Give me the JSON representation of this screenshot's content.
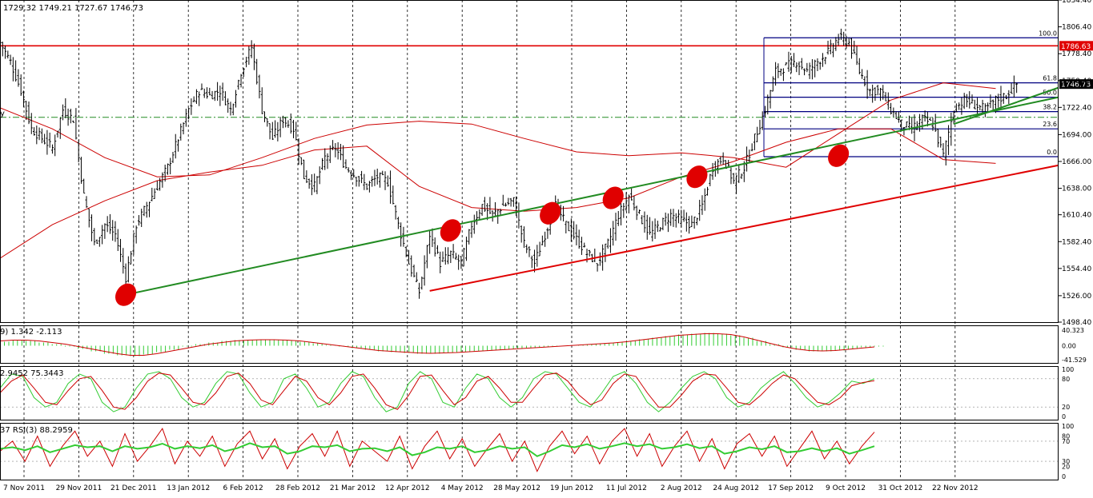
{
  "header": {
    "ohlc_text": "1729.32 1749.21 1727.67 1746.73",
    "macd_text": "9) 1.342 -2.113",
    "stoch_text": "2.9452 75.3443",
    "rsi_text": "37  RSI(3) 88.2959",
    "partial_left_label": "y"
  },
  "colors": {
    "background": "#ffffff",
    "price_bars": "#000000",
    "grid": "#000000",
    "ma_line": "#cc0000",
    "support_green": "#228b22",
    "support_red": "#e00000",
    "resistance_red": "#e00000",
    "fib_lines": "#000080",
    "fib_dashdot": "#228b22",
    "marker_fill": "#e00000",
    "macd_hist": "#33cc33",
    "macd_signal": "#cc0000",
    "stoch_main": "#33cc33",
    "stoch_signal": "#cc0000",
    "rsi_fast": "#cc0000",
    "rsi_slow": "#33cc33"
  },
  "chart_data": {
    "type": "candlestick",
    "title": "",
    "x_labels": [
      "7 Nov 2011",
      "29 Nov 2011",
      "21 Dec 2011",
      "13 Jan 2012",
      "6 Feb 2012",
      "28 Feb 2012",
      "21 Mar 2012",
      "12 Apr 2012",
      "4 May 2012",
      "28 May 2012",
      "19 Jun 2012",
      "11 Jul 2012",
      "2 Aug 2012",
      "24 Aug 2012",
      "17 Sep 2012",
      "9 Oct 2012",
      "31 Oct 2012",
      "22 Nov 2012"
    ],
    "price_ticks": [
      "1834.40",
      "1806.40",
      "1778.40",
      "1750.40",
      "1722.40",
      "1694.00",
      "1666.00",
      "1638.00",
      "1610.40",
      "1582.40",
      "1554.40",
      "1526.00",
      "1498.40"
    ],
    "ylim": [
      1498.4,
      1834.4
    ],
    "price_path": [
      [
        0,
        1790
      ],
      [
        2,
        1770
      ],
      [
        4,
        1740
      ],
      [
        6,
        1700
      ],
      [
        8,
        1690
      ],
      [
        10,
        1680
      ],
      [
        12,
        1720
      ],
      [
        14,
        1710
      ],
      [
        16,
        1630
      ],
      [
        18,
        1580
      ],
      [
        20,
        1600
      ],
      [
        22,
        1590
      ],
      [
        24,
        1545
      ],
      [
        26,
        1600
      ],
      [
        28,
        1620
      ],
      [
        30,
        1640
      ],
      [
        32,
        1660
      ],
      [
        34,
        1690
      ],
      [
        36,
        1720
      ],
      [
        38,
        1740
      ],
      [
        40,
        1735
      ],
      [
        42,
        1740
      ],
      [
        44,
        1720
      ],
      [
        46,
        1760
      ],
      [
        48,
        1785
      ],
      [
        50,
        1720
      ],
      [
        52,
        1690
      ],
      [
        54,
        1710
      ],
      [
        56,
        1700
      ],
      [
        58,
        1650
      ],
      [
        60,
        1640
      ],
      [
        62,
        1670
      ],
      [
        64,
        1680
      ],
      [
        66,
        1660
      ],
      [
        68,
        1650
      ],
      [
        70,
        1640
      ],
      [
        72,
        1650
      ],
      [
        74,
        1645
      ],
      [
        76,
        1600
      ],
      [
        78,
        1560
      ],
      [
        80,
        1530
      ],
      [
        82,
        1590
      ],
      [
        84,
        1560
      ],
      [
        86,
        1570
      ],
      [
        88,
        1560
      ],
      [
        90,
        1600
      ],
      [
        92,
        1620
      ],
      [
        94,
        1610
      ],
      [
        96,
        1620
      ],
      [
        98,
        1625
      ],
      [
        100,
        1580
      ],
      [
        102,
        1560
      ],
      [
        104,
        1590
      ],
      [
        106,
        1620
      ],
      [
        108,
        1600
      ],
      [
        110,
        1585
      ],
      [
        112,
        1570
      ],
      [
        114,
        1560
      ],
      [
        116,
        1580
      ],
      [
        118,
        1610
      ],
      [
        120,
        1630
      ],
      [
        122,
        1610
      ],
      [
        124,
        1590
      ],
      [
        126,
        1600
      ],
      [
        128,
        1610
      ],
      [
        130,
        1605
      ],
      [
        132,
        1600
      ],
      [
        134,
        1620
      ],
      [
        136,
        1660
      ],
      [
        138,
        1670
      ],
      [
        140,
        1645
      ],
      [
        142,
        1660
      ],
      [
        144,
        1690
      ],
      [
        146,
        1720
      ],
      [
        148,
        1760
      ],
      [
        150,
        1765
      ],
      [
        152,
        1770
      ],
      [
        154,
        1760
      ],
      [
        156,
        1770
      ],
      [
        158,
        1780
      ],
      [
        160,
        1795
      ],
      [
        162,
        1790
      ],
      [
        164,
        1760
      ],
      [
        166,
        1740
      ],
      [
        168,
        1740
      ],
      [
        170,
        1720
      ],
      [
        172,
        1705
      ],
      [
        174,
        1700
      ],
      [
        176,
        1710
      ],
      [
        178,
        1705
      ],
      [
        180,
        1672
      ],
      [
        182,
        1720
      ],
      [
        184,
        1730
      ],
      [
        186,
        1725
      ],
      [
        188,
        1720
      ],
      [
        190,
        1730
      ],
      [
        192,
        1735
      ],
      [
        194,
        1746.73
      ]
    ],
    "moving_averages": [
      {
        "name": "",
        "values": [
          [
            0,
            1722
          ],
          [
            10,
            1700
          ],
          [
            20,
            1670
          ],
          [
            30,
            1650
          ],
          [
            40,
            1652
          ],
          [
            50,
            1670
          ],
          [
            60,
            1690
          ],
          [
            70,
            1704
          ],
          [
            80,
            1708
          ],
          [
            90,
            1705
          ],
          [
            100,
            1690
          ],
          [
            110,
            1676
          ],
          [
            120,
            1672
          ],
          [
            130,
            1675
          ],
          [
            140,
            1670
          ],
          [
            150,
            1660
          ],
          [
            160,
            1695
          ],
          [
            170,
            1730
          ],
          [
            180,
            1748
          ],
          [
            190,
            1742
          ]
        ]
      },
      {
        "name": "",
        "values": [
          [
            0,
            1565
          ],
          [
            10,
            1600
          ],
          [
            20,
            1625
          ],
          [
            30,
            1646
          ],
          [
            40,
            1655
          ],
          [
            50,
            1662
          ],
          [
            60,
            1678
          ],
          [
            70,
            1682
          ],
          [
            80,
            1640
          ],
          [
            90,
            1618
          ],
          [
            100,
            1614
          ],
          [
            110,
            1618
          ],
          [
            120,
            1628
          ],
          [
            130,
            1650
          ],
          [
            140,
            1666
          ],
          [
            150,
            1686
          ],
          [
            160,
            1700
          ],
          [
            170,
            1700
          ],
          [
            180,
            1668
          ],
          [
            190,
            1664
          ]
        ]
      }
    ],
    "horizontal_levels": [
      {
        "label": "1786.63",
        "value": 1786.63
      },
      {
        "label": "1746.73",
        "value": 1746.73
      }
    ],
    "fibonacci": {
      "levels": [
        {
          "label": "100.0",
          "value": 1795
        },
        {
          "label": "61.8",
          "value": 1748
        },
        {
          "label": "50.0",
          "value": 1733
        },
        {
          "label": "38.2",
          "value": 1718
        },
        {
          "label": "23.6",
          "value": 1700
        },
        {
          "label": "0.0",
          "value": 1671
        }
      ]
    },
    "trendlines": [
      {
        "name": "support-green-main",
        "from": [
          24,
          1527
        ],
        "to": [
          202,
          1733
        ]
      },
      {
        "name": "support-green-upper",
        "from": [
          182,
          1705
        ],
        "to": [
          202,
          1743
        ]
      },
      {
        "name": "support-red",
        "from": [
          82,
          1531
        ],
        "to": [
          202,
          1662
        ]
      }
    ],
    "touch_markers": [
      [
        24,
        1527
      ],
      [
        86,
        1594
      ],
      [
        105,
        1612
      ],
      [
        117,
        1628
      ],
      [
        133,
        1650
      ],
      [
        160,
        1672
      ]
    ],
    "macd": {
      "label_right": [
        "40.323",
        "0.00",
        "-41.529"
      ],
      "hist": [
        10,
        14,
        12,
        8,
        4,
        -2,
        -8,
        -14,
        -20,
        -24,
        -26,
        -22,
        -16,
        -10,
        -2,
        4,
        8,
        12,
        14,
        15,
        16,
        15,
        13,
        10,
        6,
        2,
        -2,
        -6,
        -10,
        -14,
        -16,
        -18,
        -20,
        -20,
        -18,
        -16,
        -14,
        -12,
        -10,
        -8,
        -6,
        -4,
        -2,
        0,
        2,
        4,
        6,
        8,
        12,
        16,
        20,
        24,
        28,
        30,
        32,
        30,
        26,
        20,
        12,
        4,
        -4,
        -10,
        -14,
        -14,
        -12,
        -8,
        -4,
        -2
      ],
      "signal": [
        12,
        14,
        14,
        12,
        8,
        4,
        -2,
        -8,
        -14,
        -20,
        -24,
        -24,
        -20,
        -14,
        -8,
        -2,
        4,
        8,
        12,
        14,
        15,
        15,
        14,
        12,
        8,
        4,
        0,
        -4,
        -8,
        -12,
        -14,
        -16,
        -18,
        -19,
        -18,
        -17,
        -15,
        -13,
        -11,
        -9,
        -7,
        -5,
        -3,
        -1,
        1,
        3,
        5,
        7,
        10,
        14,
        18,
        22,
        26,
        28,
        30,
        30,
        28,
        22,
        14,
        6,
        -2,
        -8,
        -12,
        -13,
        -12,
        -9,
        -6,
        -3
      ]
    },
    "stochastic": {
      "label_right": [
        "100",
        "80",
        "20",
        "0"
      ],
      "main": [
        60,
        90,
        85,
        40,
        20,
        30,
        70,
        90,
        80,
        30,
        10,
        20,
        60,
        90,
        95,
        80,
        40,
        20,
        30,
        70,
        95,
        90,
        50,
        20,
        30,
        80,
        90,
        60,
        20,
        30,
        70,
        95,
        85,
        40,
        10,
        20,
        70,
        95,
        80,
        30,
        20,
        60,
        90,
        80,
        40,
        20,
        40,
        80,
        95,
        90,
        60,
        30,
        20,
        50,
        85,
        95,
        70,
        30,
        10,
        30,
        60,
        85,
        95,
        80,
        40,
        20,
        30,
        60,
        80,
        95,
        70,
        40,
        20,
        30,
        50,
        75,
        70,
        80
      ],
      "signal": [
        50,
        75,
        88,
        60,
        30,
        25,
        55,
        80,
        85,
        55,
        20,
        15,
        40,
        75,
        92,
        88,
        60,
        30,
        25,
        50,
        85,
        92,
        70,
        35,
        25,
        55,
        85,
        75,
        40,
        25,
        50,
        85,
        90,
        60,
        25,
        15,
        45,
        85,
        88,
        55,
        25,
        40,
        75,
        85,
        60,
        30,
        30,
        60,
        88,
        92,
        75,
        45,
        25,
        35,
        70,
        90,
        85,
        50,
        20,
        20,
        45,
        75,
        90,
        88,
        60,
        30,
        25,
        45,
        70,
        88,
        80,
        55,
        30,
        25,
        40,
        65,
        72,
        76
      ]
    },
    "rsi": {
      "label_right": [
        "100",
        "80",
        "70",
        "30",
        "20",
        "0"
      ],
      "fast": [
        50,
        70,
        30,
        80,
        20,
        60,
        90,
        40,
        70,
        20,
        85,
        30,
        60,
        95,
        25,
        70,
        40,
        80,
        20,
        65,
        90,
        35,
        75,
        15,
        60,
        85,
        40,
        90,
        20,
        70,
        50,
        30,
        80,
        15,
        60,
        90,
        35,
        75,
        20,
        55,
        85,
        30,
        70,
        10,
        60,
        90,
        45,
        80,
        25,
        70,
        95,
        40,
        85,
        20,
        60,
        90,
        30,
        75,
        15,
        65,
        85,
        40,
        80,
        20,
        55,
        90,
        35,
        70,
        25,
        60,
        88
      ],
      "slow": [
        55,
        58,
        52,
        60,
        48,
        55,
        62,
        58,
        60,
        50,
        60,
        55,
        58,
        65,
        55,
        60,
        56,
        62,
        50,
        56,
        66,
        58,
        60,
        45,
        50,
        60,
        58,
        62,
        50,
        55,
        56,
        50,
        58,
        42,
        48,
        58,
        55,
        60,
        48,
        52,
        60,
        55,
        58,
        40,
        50,
        62,
        58,
        64,
        55,
        60,
        66,
        60,
        64,
        55,
        58,
        64,
        56,
        60,
        45,
        50,
        58,
        54,
        60,
        48,
        50,
        56,
        50,
        56,
        45,
        52,
        60
      ]
    }
  }
}
